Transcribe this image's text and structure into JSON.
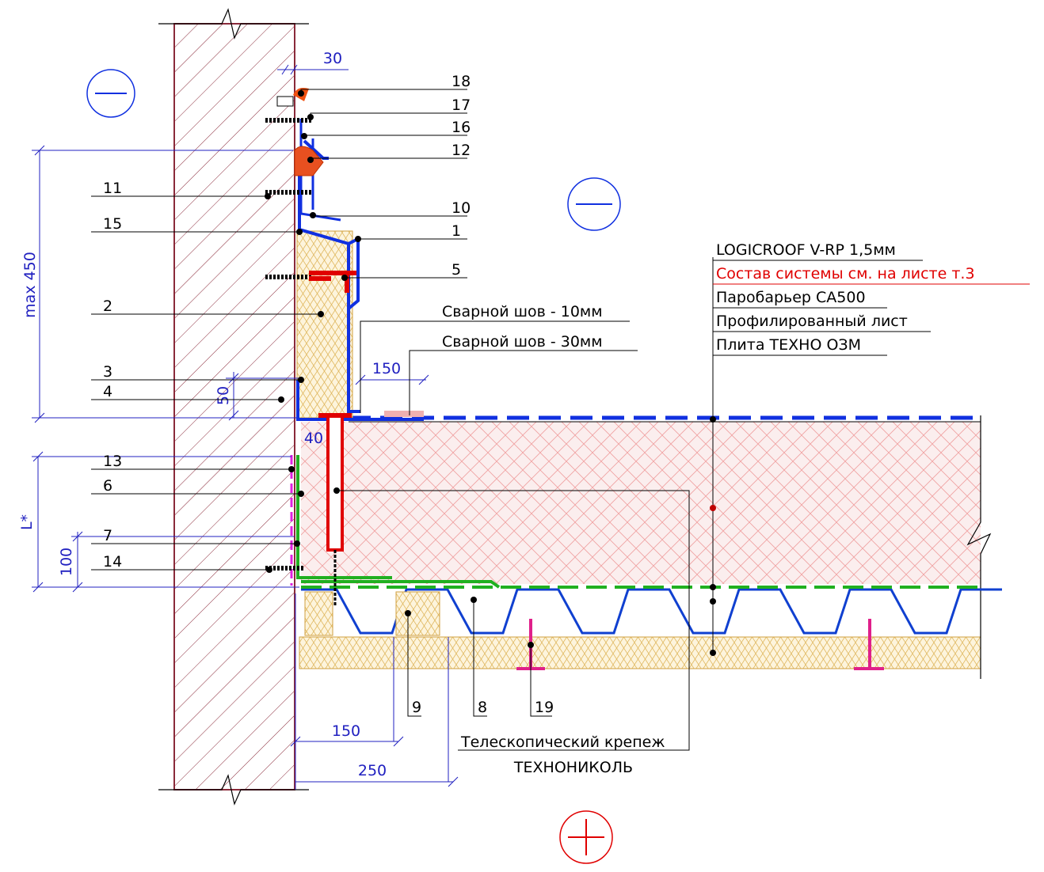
{
  "dimensions": [
    "30",
    "max 450",
    "150",
    "50",
    "40",
    "L*",
    "100",
    "150",
    "250"
  ],
  "callouts": [
    "18",
    "17",
    "16",
    "12",
    "11",
    "10",
    "15",
    "1",
    "5",
    "2",
    "3",
    "4",
    "13",
    "6",
    "7",
    "14",
    "9",
    "8",
    "19"
  ],
  "welds": [
    "Сварной шов - 10мм",
    "Сварной шов - 30мм"
  ],
  "layers": [
    "LOGICROOF V-RP 1,5мм",
    "Состав системы см. на листе т.3",
    "Паробарьер CA500",
    "Профилированный лист",
    "Плита ТЕХНО ОЗМ"
  ],
  "fastener": [
    "Телескопический крепеж",
    "ТЕХНОНИКОЛЬ"
  ]
}
